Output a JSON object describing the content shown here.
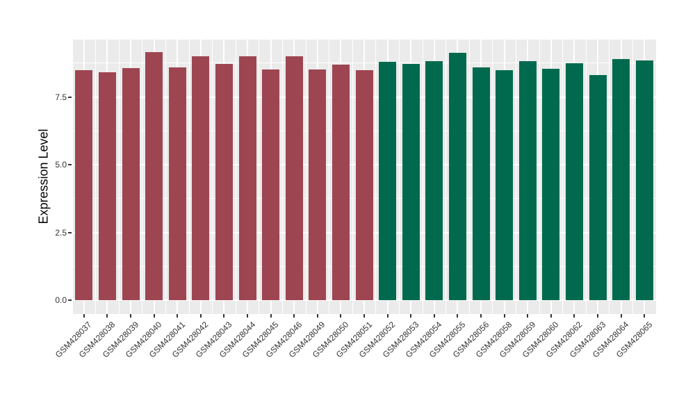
{
  "chart_data": {
    "type": "bar",
    "title": "",
    "xlabel": "",
    "ylabel": "Expression Level",
    "ylim": [
      0,
      9.6
    ],
    "yticks": [
      0.0,
      2.5,
      5.0,
      7.5
    ],
    "ytick_labels": [
      "0.0",
      "2.5",
      "5.0",
      "7.5"
    ],
    "yminorticks": [
      1.25,
      3.75,
      6.25,
      8.75
    ],
    "grid": "on",
    "legend": "none",
    "categories": [
      "GSM428037",
      "GSM428038",
      "GSM428039",
      "GSM428040",
      "GSM428041",
      "GSM428042",
      "GSM428043",
      "GSM428044",
      "GSM428045",
      "GSM428046",
      "GSM428049",
      "GSM428050",
      "GSM428051",
      "GSM428052",
      "GSM428053",
      "GSM428054",
      "GSM428055",
      "GSM428056",
      "GSM428058",
      "GSM428059",
      "GSM428060",
      "GSM428062",
      "GSM428063",
      "GSM428064",
      "GSM428065"
    ],
    "values": [
      8.5,
      8.41,
      8.56,
      9.15,
      8.59,
      8.99,
      8.71,
      8.99,
      8.51,
      9.01,
      8.51,
      8.69,
      8.49,
      8.79,
      8.71,
      8.81,
      9.13,
      8.58,
      8.49,
      8.83,
      8.53,
      8.74,
      8.3,
      8.9,
      8.85
    ],
    "bar_groups": [
      "group1",
      "group1",
      "group1",
      "group1",
      "group1",
      "group1",
      "group1",
      "group1",
      "group1",
      "group1",
      "group1",
      "group1",
      "group1",
      "group2",
      "group2",
      "group2",
      "group2",
      "group2",
      "group2",
      "group2",
      "group2",
      "group2",
      "group2",
      "group2",
      "group2"
    ],
    "group_colors": {
      "group1": "#9E4552",
      "group2": "#016A4E"
    },
    "panel_background": "#EBEBEB",
    "grid_color": "#FFFFFF",
    "axis_text_color": "#333333"
  }
}
